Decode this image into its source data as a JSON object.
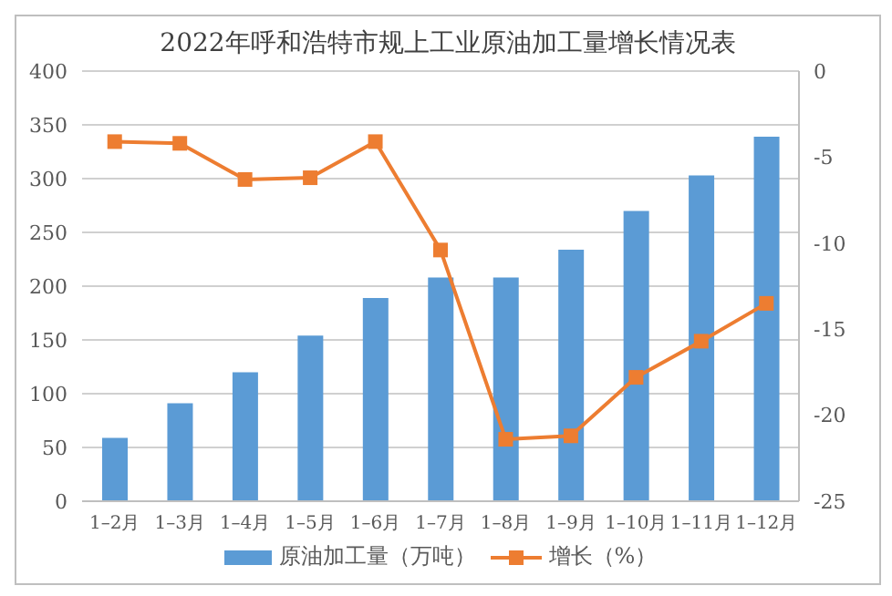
{
  "chart_data": {
    "type": "bar",
    "title": "2022年呼和浩特市规上工业原油加工量增长情况表",
    "categories": [
      "1–2月",
      "1–3月",
      "1–4月",
      "1–5月",
      "1–6月",
      "1–7月",
      "1–8月",
      "1–9月",
      "1–10月",
      "1–11月",
      "1–12月"
    ],
    "series": [
      {
        "name": "原油加工量（万吨）",
        "color": "#5b9bd5",
        "values": [
          59,
          91,
          120,
          154,
          189,
          208,
          208,
          234,
          270,
          303,
          339
        ]
      },
      {
        "name": "增长（%）",
        "type": "line",
        "axis": "y2",
        "color": "#ed7d31",
        "marker": "square",
        "values": [
          -4.1,
          -4.2,
          -6.3,
          -6.2,
          -4.1,
          -10.4,
          -21.4,
          -21.2,
          -17.8,
          -15.7,
          -13.5
        ]
      }
    ],
    "ylim": [
      0,
      400
    ],
    "yticks": [
      0,
      50,
      100,
      150,
      200,
      250,
      300,
      350,
      400
    ],
    "y2lim": [
      -25,
      0
    ],
    "y2ticks": [
      -25,
      -20,
      -15,
      -10,
      -5,
      0
    ],
    "grid": "y",
    "legend": "bottom"
  }
}
